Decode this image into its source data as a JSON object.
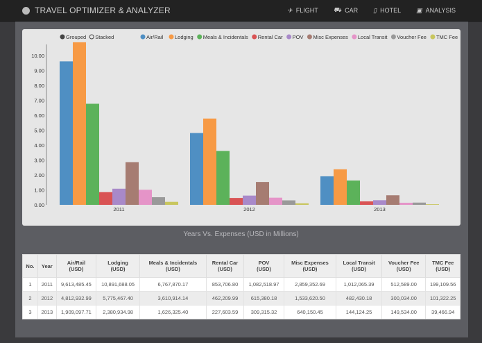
{
  "header": {
    "title": "TRAVEL OPTIMIZER & ANALYZER",
    "nav": [
      {
        "label": "FLIGHT",
        "icon": "plane-icon"
      },
      {
        "label": "CAR",
        "icon": "car-icon"
      },
      {
        "label": "HOTEL",
        "icon": "hotel-icon"
      },
      {
        "label": "ANALYSIS",
        "icon": "chart-icon"
      }
    ]
  },
  "controls": {
    "grouped": "Grouped",
    "stacked": "Stacked",
    "selected": "Grouped"
  },
  "caption": "Years Vs. Expenses (USD in Millions)",
  "chart_data": {
    "type": "bar",
    "mode": "grouped",
    "categories": [
      "2011",
      "2012",
      "2013"
    ],
    "ylim": [
      0,
      10.9
    ],
    "yticks": [
      "0.00",
      "1.00",
      "2.00",
      "3.00",
      "4.00",
      "5.00",
      "6.00",
      "7.00",
      "8.00",
      "9.00",
      "10.00"
    ],
    "legend": "top",
    "series": [
      {
        "name": "Air/Rail",
        "color": "#4f8fc3",
        "values": [
          9.61,
          4.81,
          1.91
        ]
      },
      {
        "name": "Lodging",
        "color": "#f79a45",
        "values": [
          10.89,
          5.78,
          2.38
        ]
      },
      {
        "name": "Meals & Incidentals",
        "color": "#5cb25a",
        "values": [
          6.77,
          3.61,
          1.63
        ]
      },
      {
        "name": "Rental Car",
        "color": "#d95354",
        "values": [
          0.85,
          0.46,
          0.23
        ]
      },
      {
        "name": "POV",
        "color": "#a889c9",
        "values": [
          1.08,
          0.62,
          0.31
        ]
      },
      {
        "name": "Misc Expenses",
        "color": "#a67c72",
        "values": [
          2.86,
          1.53,
          0.64
        ]
      },
      {
        "name": "Local Transit",
        "color": "#e594c8",
        "values": [
          1.01,
          0.48,
          0.14
        ]
      },
      {
        "name": "Voucher Fee",
        "color": "#999999",
        "values": [
          0.51,
          0.3,
          0.15
        ]
      },
      {
        "name": "TMC Fee",
        "color": "#c8c65e",
        "values": [
          0.2,
          0.1,
          0.04
        ]
      }
    ]
  },
  "table": {
    "headers": [
      [
        "No.",
        ""
      ],
      [
        "Year",
        ""
      ],
      [
        "Air/Rail",
        "(USD)"
      ],
      [
        "Lodging",
        "(USD)"
      ],
      [
        "Meals & Incidentals",
        "(USD)"
      ],
      [
        "Rental Car",
        "(USD)"
      ],
      [
        "POV",
        "(USD)"
      ],
      [
        "Misc Expenses",
        "(USD)"
      ],
      [
        "Local Transit",
        "(USD)"
      ],
      [
        "Voucher Fee",
        "(USD)"
      ],
      [
        "TMC Fee",
        "(USD)"
      ]
    ],
    "rows": [
      [
        "1",
        "2011",
        "9,613,485.45",
        "10,891,688.05",
        "6,767,870.17",
        "853,706.80",
        "1,082,518.97",
        "2,859,352.69",
        "1,012,065.39",
        "512,589.00",
        "199,109.56"
      ],
      [
        "2",
        "2012",
        "4,812,932.99",
        "5,775,467.40",
        "3,610,914.14",
        "462,209.99",
        "615,380.18",
        "1,533,620.50",
        "482,430.18",
        "300,034.00",
        "101,322.25"
      ],
      [
        "3",
        "2013",
        "1,909,097.71",
        "2,380,934.98",
        "1,626,325.40",
        "227,603.59",
        "309,315.32",
        "640,150.45",
        "144,124.25",
        "149,534.00",
        "39,466.94"
      ]
    ]
  }
}
